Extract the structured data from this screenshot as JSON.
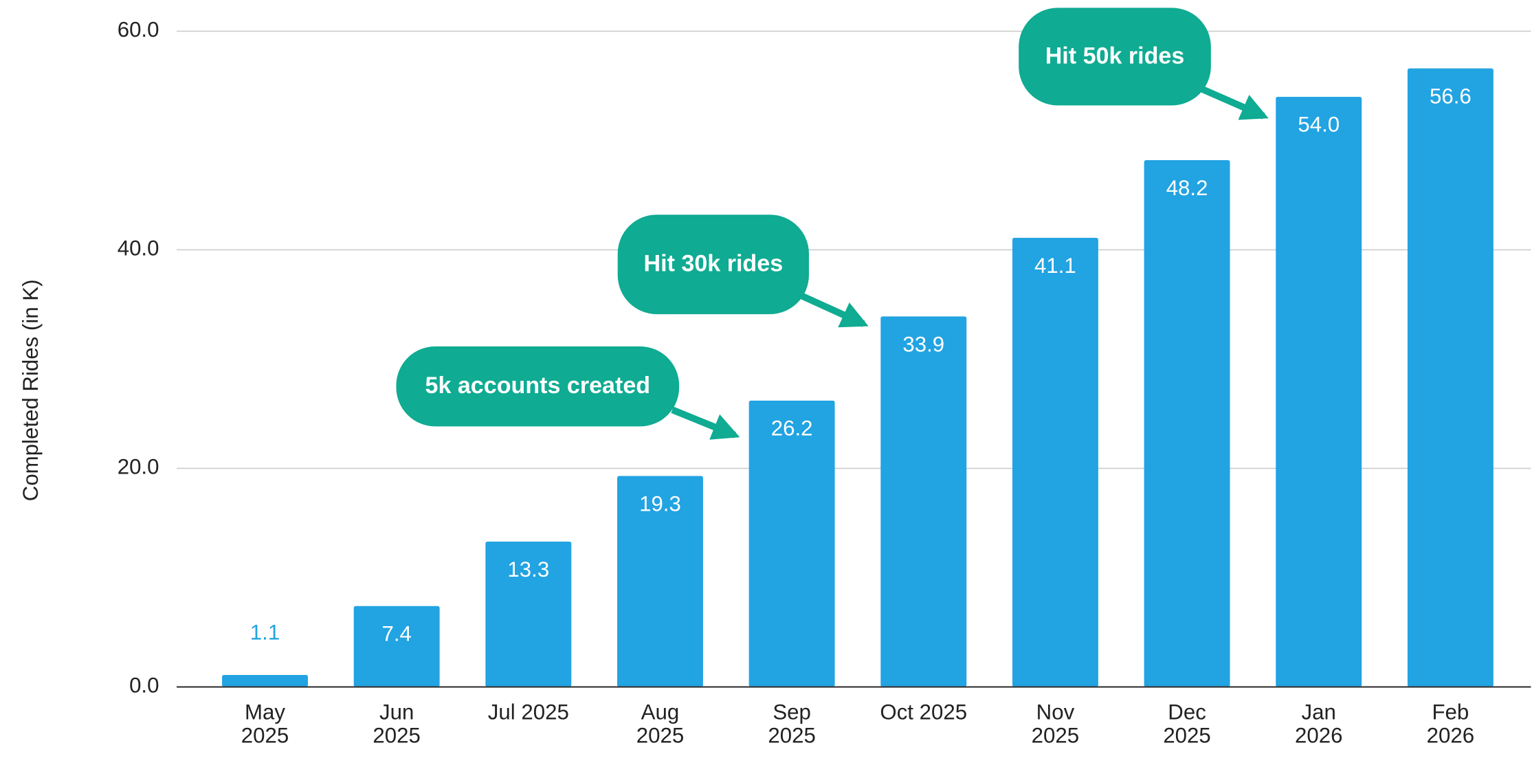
{
  "chart_data": {
    "type": "bar",
    "y_axis_label": "Completed Rides (in K)",
    "categories": [
      "May 2025",
      "Jun 2025",
      "Jul 2025",
      "Aug 2025",
      "Sep 2025",
      "Oct 2025",
      "Nov 2025",
      "Dec 2025",
      "Jan 2026",
      "Feb 2026"
    ],
    "values": [
      1.1,
      7.4,
      13.3,
      19.3,
      26.2,
      33.9,
      41.1,
      48.2,
      54.0,
      56.6
    ],
    "value_labels": [
      "1.1",
      "7.4",
      "13.3",
      "19.3",
      "26.2",
      "33.9",
      "41.1",
      "48.2",
      "54.0",
      "56.6"
    ],
    "color": "#22a3e2",
    "ylim": [
      0,
      60
    ],
    "yticks": [
      {
        "value": 0,
        "label": "0.0"
      },
      {
        "value": 20,
        "label": "20.0"
      },
      {
        "value": 40,
        "label": "40.0"
      },
      {
        "value": 60,
        "label": "60.0"
      }
    ],
    "grid": true,
    "annotations": [
      {
        "text": "5k accounts created"
      },
      {
        "text": "Hit 30k rides"
      },
      {
        "text": "Hit 50k rides"
      }
    ],
    "annotation_color": "#0fab92"
  }
}
